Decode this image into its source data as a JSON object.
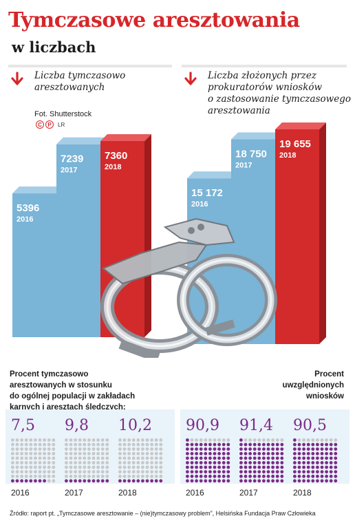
{
  "title": "Tymczasowe aresztowania",
  "subtitle": "w liczbach",
  "left_heading": "Liczba tymczasowo\naresztowanych",
  "right_heading": "Liczba złożonych przez\nprokuratorów wniosków\no zastosowanie tymczasowego\naresztowania",
  "photo_credit": "Fot. Shutterstock",
  "copyright_marks": [
    "C",
    "P"
  ],
  "copyright_initials": "LR",
  "colors": {
    "accent_red": "#d7262a",
    "bar_blue": "#7ab4d6",
    "bar_red": "#d32a2b",
    "dot_purple": "#7b2a86",
    "dot_grey": "#c8c8c8"
  },
  "chart_data": [
    {
      "type": "bar",
      "title": "Liczba tymczasowo aresztowanych",
      "categories": [
        "2016",
        "2017",
        "2018"
      ],
      "values": [
        5396,
        7239,
        7360
      ],
      "labels": [
        "5396",
        "7239",
        "7360"
      ],
      "highlight_category": "2018"
    },
    {
      "type": "bar",
      "title": "Liczba złożonych przez prokuratorów wniosków o zastosowanie tymczasowego aresztowania",
      "categories": [
        "2016",
        "2017",
        "2018"
      ],
      "values": [
        15172,
        18750,
        19655
      ],
      "labels": [
        "15 172",
        "18 750",
        "19 655"
      ],
      "highlight_category": "2018"
    },
    {
      "type": "dot-grid",
      "title": "Procent tymczasowo aresztowanych w stosunku do ogólnej populacji w zakładach karnych i aresztach śledczych:",
      "categories": [
        "2016",
        "2017",
        "2018"
      ],
      "values": [
        7.5,
        9.8,
        10.2
      ],
      "labels": [
        "7,5",
        "9,8",
        "10,2"
      ],
      "unit": "percent"
    },
    {
      "type": "dot-grid",
      "title": "Procent uwzględnionych wniosków",
      "categories": [
        "2016",
        "2017",
        "2018"
      ],
      "values": [
        90.9,
        91.4,
        90.5
      ],
      "labels": [
        "90,9",
        "91,4",
        "90,5"
      ],
      "unit": "percent"
    }
  ],
  "pct_left_text": "Procent tymczasowo\naresztowanych w stosunku\ndo ogólnej populacji w zakładach\nkarnych i aresztach śledczych:",
  "pct_right_text": "Procent\nuwzględnionych\nwniosków",
  "footer": "Źródło: raport pt. „Tymczasowe aresztowanie – (nie)tymczasowy problem”, Helsińska Fundacja Praw Człowieka"
}
